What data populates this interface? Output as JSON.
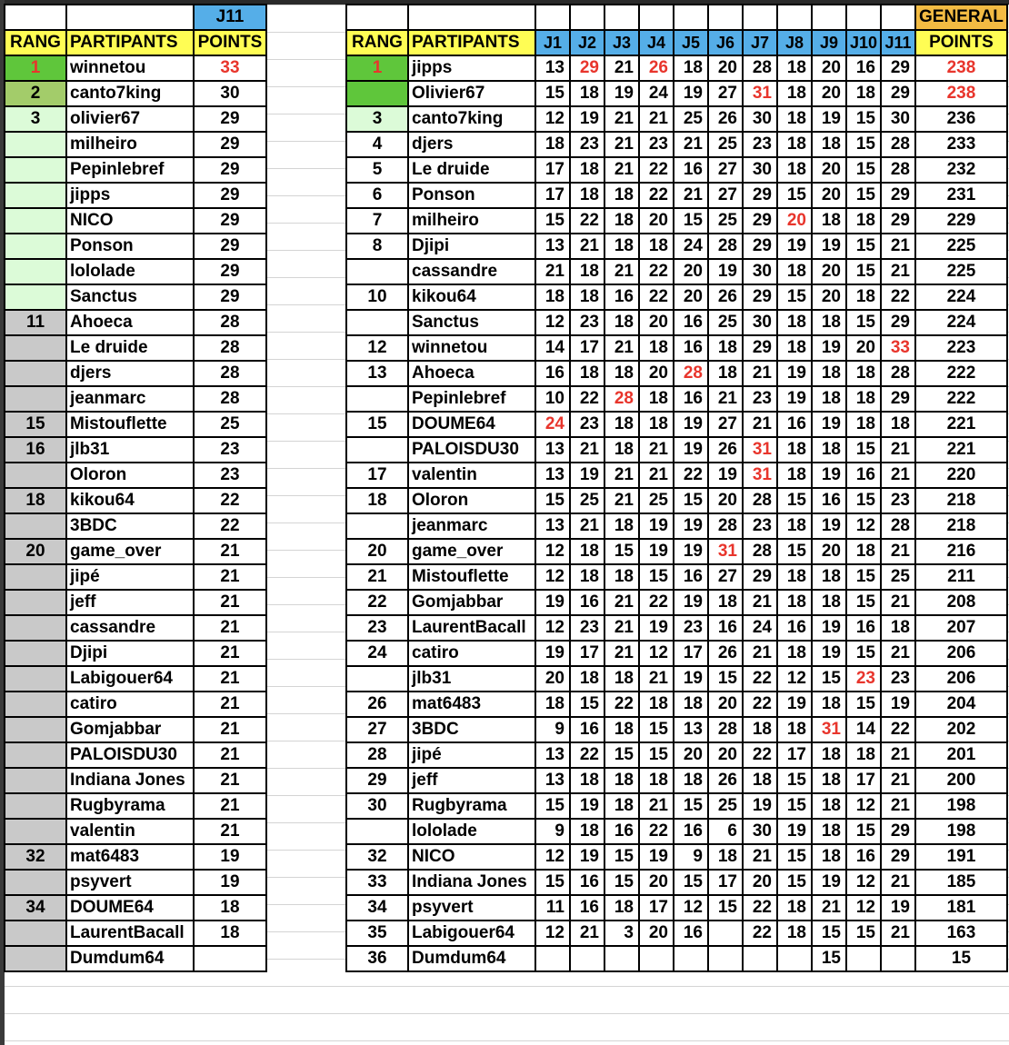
{
  "colors": {
    "header_blue": "#55aee8",
    "header_yellow": "#fffd54",
    "general_orange": "#f3bb43",
    "first_green": "#5fc63b",
    "second_green": "#a3cc6a",
    "top_light_green": "#dcfbd8",
    "gray": "#c9c9c9",
    "highlight_red": "#e8352c"
  },
  "left": {
    "round_label": "J11",
    "headers": {
      "rang": "RANG",
      "participants": "PARTIPANTS",
      "points": "POINTS"
    },
    "rows": [
      {
        "rang": "1",
        "name": "winnetou",
        "points": "33",
        "red": true,
        "tier": "g1"
      },
      {
        "rang": "2",
        "name": "canto7king",
        "points": "30",
        "tier": "g2"
      },
      {
        "rang": "3",
        "name": "olivier67",
        "points": "29",
        "tier": "g3"
      },
      {
        "rang": "",
        "name": "milheiro",
        "points": "29",
        "tier": "g3"
      },
      {
        "rang": "",
        "name": "Pepinlebref",
        "points": "29",
        "tier": "g3"
      },
      {
        "rang": "",
        "name": "jipps",
        "points": "29",
        "tier": "g3"
      },
      {
        "rang": "",
        "name": "NICO",
        "points": "29",
        "tier": "g3"
      },
      {
        "rang": "",
        "name": "Ponson",
        "points": "29",
        "tier": "g3"
      },
      {
        "rang": "",
        "name": "lololade",
        "points": "29",
        "tier": "g3"
      },
      {
        "rang": "",
        "name": "Sanctus",
        "points": "29",
        "tier": "g3"
      },
      {
        "rang": "11",
        "name": "Ahoeca",
        "points": "28",
        "tier": "gray"
      },
      {
        "rang": "",
        "name": "Le druide",
        "points": "28",
        "tier": "gray"
      },
      {
        "rang": "",
        "name": "djers",
        "points": "28",
        "tier": "gray"
      },
      {
        "rang": "",
        "name": "jeanmarc",
        "points": "28",
        "tier": "gray"
      },
      {
        "rang": "15",
        "name": "Mistouflette",
        "points": "25",
        "tier": "gray"
      },
      {
        "rang": "16",
        "name": "jlb31",
        "points": "23",
        "tier": "gray"
      },
      {
        "rang": "",
        "name": "Oloron",
        "points": "23",
        "tier": "gray"
      },
      {
        "rang": "18",
        "name": "kikou64",
        "points": "22",
        "tier": "gray"
      },
      {
        "rang": "",
        "name": "3BDC",
        "points": "22",
        "tier": "gray"
      },
      {
        "rang": "20",
        "name": "game_over",
        "points": "21",
        "tier": "gray"
      },
      {
        "rang": "",
        "name": "jipé",
        "points": "21",
        "tier": "gray"
      },
      {
        "rang": "",
        "name": "jeff",
        "points": "21",
        "tier": "gray"
      },
      {
        "rang": "",
        "name": "cassandre",
        "points": "21",
        "tier": "gray"
      },
      {
        "rang": "",
        "name": "Djipi",
        "points": "21",
        "tier": "gray"
      },
      {
        "rang": "",
        "name": "Labigouer64",
        "points": "21",
        "tier": "gray"
      },
      {
        "rang": "",
        "name": "catiro",
        "points": "21",
        "tier": "gray"
      },
      {
        "rang": "",
        "name": "Gomjabbar",
        "points": "21",
        "tier": "gray"
      },
      {
        "rang": "",
        "name": "PALOISDU30",
        "points": "21",
        "tier": "gray"
      },
      {
        "rang": "",
        "name": "Indiana Jones",
        "points": "21",
        "tier": "gray"
      },
      {
        "rang": "",
        "name": "Rugbyrama",
        "points": "21",
        "tier": "gray"
      },
      {
        "rang": "",
        "name": "valentin",
        "points": "21",
        "tier": "gray"
      },
      {
        "rang": "32",
        "name": "mat6483",
        "points": "19",
        "tier": "gray"
      },
      {
        "rang": "",
        "name": "psyvert",
        "points": "19",
        "tier": "gray"
      },
      {
        "rang": "34",
        "name": "DOUME64",
        "points": "18",
        "tier": "gray"
      },
      {
        "rang": "",
        "name": "LaurentBacall",
        "points": "18",
        "tier": "gray"
      },
      {
        "rang": "",
        "name": "Dumdum64",
        "points": "",
        "tier": "gray"
      }
    ]
  },
  "right": {
    "general_label": "GENERAL",
    "headers": {
      "rang": "RANG",
      "participants": "PARTIPANTS",
      "rounds": [
        "J1",
        "J2",
        "J3",
        "J4",
        "J5",
        "J6",
        "J7",
        "J8",
        "J9",
        "J10",
        "J11"
      ],
      "points": "POINTS"
    },
    "rows": [
      {
        "rang": "1",
        "name": "jipps",
        "scores": [
          "13",
          "29",
          "21",
          "26",
          "18",
          "20",
          "28",
          "18",
          "20",
          "16",
          "29"
        ],
        "total": "238",
        "red": [
          1,
          3
        ],
        "total_red": true,
        "tier": "g1",
        "rang_red": true
      },
      {
        "rang": "",
        "name": "Olivier67",
        "scores": [
          "15",
          "18",
          "19",
          "24",
          "19",
          "27",
          "31",
          "18",
          "20",
          "18",
          "29"
        ],
        "total": "238",
        "red": [
          6
        ],
        "total_red": true,
        "tier": "g1"
      },
      {
        "rang": "3",
        "name": "canto7king",
        "scores": [
          "12",
          "19",
          "21",
          "21",
          "25",
          "26",
          "30",
          "18",
          "19",
          "15",
          "30"
        ],
        "total": "236",
        "red": [],
        "tier": "g3"
      },
      {
        "rang": "4",
        "name": "djers",
        "scores": [
          "18",
          "23",
          "21",
          "23",
          "21",
          "25",
          "23",
          "18",
          "18",
          "15",
          "28"
        ],
        "total": "233",
        "red": []
      },
      {
        "rang": "5",
        "name": "Le druide",
        "scores": [
          "17",
          "18",
          "21",
          "22",
          "16",
          "27",
          "30",
          "18",
          "20",
          "15",
          "28"
        ],
        "total": "232",
        "red": []
      },
      {
        "rang": "6",
        "name": "Ponson",
        "scores": [
          "17",
          "18",
          "18",
          "22",
          "21",
          "27",
          "29",
          "15",
          "20",
          "15",
          "29"
        ],
        "total": "231",
        "red": []
      },
      {
        "rang": "7",
        "name": "milheiro",
        "scores": [
          "15",
          "22",
          "18",
          "20",
          "15",
          "25",
          "29",
          "20",
          "18",
          "18",
          "29"
        ],
        "total": "229",
        "red": [
          7
        ]
      },
      {
        "rang": "8",
        "name": "Djipi",
        "scores": [
          "13",
          "21",
          "18",
          "18",
          "24",
          "28",
          "29",
          "19",
          "19",
          "15",
          "21"
        ],
        "total": "225",
        "red": []
      },
      {
        "rang": "",
        "name": "cassandre",
        "scores": [
          "21",
          "18",
          "21",
          "22",
          "20",
          "19",
          "30",
          "18",
          "20",
          "15",
          "21"
        ],
        "total": "225",
        "red": []
      },
      {
        "rang": "10",
        "name": "kikou64",
        "scores": [
          "18",
          "18",
          "16",
          "22",
          "20",
          "26",
          "29",
          "15",
          "20",
          "18",
          "22"
        ],
        "total": "224",
        "red": []
      },
      {
        "rang": "",
        "name": "Sanctus",
        "scores": [
          "12",
          "23",
          "18",
          "20",
          "16",
          "25",
          "30",
          "18",
          "18",
          "15",
          "29"
        ],
        "total": "224",
        "red": []
      },
      {
        "rang": "12",
        "name": "winnetou",
        "scores": [
          "14",
          "17",
          "21",
          "18",
          "16",
          "18",
          "29",
          "18",
          "19",
          "20",
          "33"
        ],
        "total": "223",
        "red": [
          10
        ]
      },
      {
        "rang": "13",
        "name": "Ahoeca",
        "scores": [
          "16",
          "18",
          "18",
          "20",
          "28",
          "18",
          "21",
          "19",
          "18",
          "18",
          "28"
        ],
        "total": "222",
        "red": [
          4
        ]
      },
      {
        "rang": "",
        "name": "Pepinlebref",
        "scores": [
          "10",
          "22",
          "28",
          "18",
          "16",
          "21",
          "23",
          "19",
          "18",
          "18",
          "29"
        ],
        "total": "222",
        "red": [
          2
        ]
      },
      {
        "rang": "15",
        "name": "DOUME64",
        "scores": [
          "24",
          "23",
          "18",
          "18",
          "19",
          "27",
          "21",
          "16",
          "19",
          "18",
          "18"
        ],
        "total": "221",
        "red": [
          0
        ]
      },
      {
        "rang": "",
        "name": "PALOISDU30",
        "scores": [
          "13",
          "21",
          "18",
          "21",
          "19",
          "26",
          "31",
          "18",
          "18",
          "15",
          "21"
        ],
        "total": "221",
        "red": [
          6
        ]
      },
      {
        "rang": "17",
        "name": "valentin",
        "scores": [
          "13",
          "19",
          "21",
          "21",
          "22",
          "19",
          "31",
          "18",
          "19",
          "16",
          "21"
        ],
        "total": "220",
        "red": [
          6
        ]
      },
      {
        "rang": "18",
        "name": "Oloron",
        "scores": [
          "15",
          "25",
          "21",
          "25",
          "15",
          "20",
          "28",
          "15",
          "16",
          "15",
          "23"
        ],
        "total": "218",
        "red": []
      },
      {
        "rang": "",
        "name": "jeanmarc",
        "scores": [
          "13",
          "21",
          "18",
          "19",
          "19",
          "28",
          "23",
          "18",
          "19",
          "12",
          "28"
        ],
        "total": "218",
        "red": []
      },
      {
        "rang": "20",
        "name": "game_over",
        "scores": [
          "12",
          "18",
          "15",
          "19",
          "19",
          "31",
          "28",
          "15",
          "20",
          "18",
          "21"
        ],
        "total": "216",
        "red": [
          5
        ]
      },
      {
        "rang": "21",
        "name": "Mistouflette",
        "scores": [
          "12",
          "18",
          "18",
          "15",
          "16",
          "27",
          "29",
          "18",
          "18",
          "15",
          "25"
        ],
        "total": "211",
        "red": []
      },
      {
        "rang": "22",
        "name": "Gomjabbar",
        "scores": [
          "19",
          "16",
          "21",
          "22",
          "19",
          "18",
          "21",
          "18",
          "18",
          "15",
          "21"
        ],
        "total": "208",
        "red": []
      },
      {
        "rang": "23",
        "name": "LaurentBacall",
        "scores": [
          "12",
          "23",
          "21",
          "19",
          "23",
          "16",
          "24",
          "16",
          "19",
          "16",
          "18"
        ],
        "total": "207",
        "red": []
      },
      {
        "rang": "24",
        "name": "catiro",
        "scores": [
          "19",
          "17",
          "21",
          "12",
          "17",
          "26",
          "21",
          "18",
          "19",
          "15",
          "21"
        ],
        "total": "206",
        "red": []
      },
      {
        "rang": "",
        "name": "jlb31",
        "scores": [
          "20",
          "18",
          "18",
          "21",
          "19",
          "15",
          "22",
          "12",
          "15",
          "23",
          "23"
        ],
        "total": "206",
        "red": [
          9
        ]
      },
      {
        "rang": "26",
        "name": "mat6483",
        "scores": [
          "18",
          "15",
          "22",
          "18",
          "18",
          "20",
          "22",
          "19",
          "18",
          "15",
          "19"
        ],
        "total": "204",
        "red": []
      },
      {
        "rang": "27",
        "name": "3BDC",
        "scores": [
          "9",
          "16",
          "18",
          "15",
          "13",
          "28",
          "18",
          "18",
          "31",
          "14",
          "22"
        ],
        "total": "202",
        "red": [
          8
        ]
      },
      {
        "rang": "28",
        "name": "jipé",
        "scores": [
          "13",
          "22",
          "15",
          "15",
          "20",
          "20",
          "22",
          "17",
          "18",
          "18",
          "21"
        ],
        "total": "201",
        "red": []
      },
      {
        "rang": "29",
        "name": "jeff",
        "scores": [
          "13",
          "18",
          "18",
          "18",
          "18",
          "26",
          "18",
          "15",
          "18",
          "17",
          "21"
        ],
        "total": "200",
        "red": []
      },
      {
        "rang": "30",
        "name": "Rugbyrama",
        "scores": [
          "15",
          "19",
          "18",
          "21",
          "15",
          "25",
          "19",
          "15",
          "18",
          "12",
          "21"
        ],
        "total": "198",
        "red": []
      },
      {
        "rang": "",
        "name": "lololade",
        "scores": [
          "9",
          "18",
          "16",
          "22",
          "16",
          "6",
          "30",
          "19",
          "18",
          "15",
          "29"
        ],
        "total": "198",
        "red": []
      },
      {
        "rang": "32",
        "name": "NICO",
        "scores": [
          "12",
          "19",
          "15",
          "19",
          "9",
          "18",
          "21",
          "15",
          "18",
          "16",
          "29"
        ],
        "total": "191",
        "red": []
      },
      {
        "rang": "33",
        "name": "Indiana Jones",
        "scores": [
          "15",
          "16",
          "15",
          "20",
          "15",
          "17",
          "20",
          "15",
          "19",
          "12",
          "21"
        ],
        "total": "185",
        "red": []
      },
      {
        "rang": "34",
        "name": "psyvert",
        "scores": [
          "11",
          "16",
          "18",
          "17",
          "12",
          "15",
          "22",
          "18",
          "21",
          "12",
          "19"
        ],
        "total": "181",
        "red": []
      },
      {
        "rang": "35",
        "name": "Labigouer64",
        "scores": [
          "12",
          "21",
          "3",
          "20",
          "16",
          "",
          "22",
          "18",
          "15",
          "15",
          "21"
        ],
        "total": "163",
        "red": []
      },
      {
        "rang": "36",
        "name": "Dumdum64",
        "scores": [
          "",
          "",
          "",
          "",
          "",
          "",
          "",
          "",
          "15",
          "",
          ""
        ],
        "total": "15",
        "red": []
      }
    ]
  }
}
